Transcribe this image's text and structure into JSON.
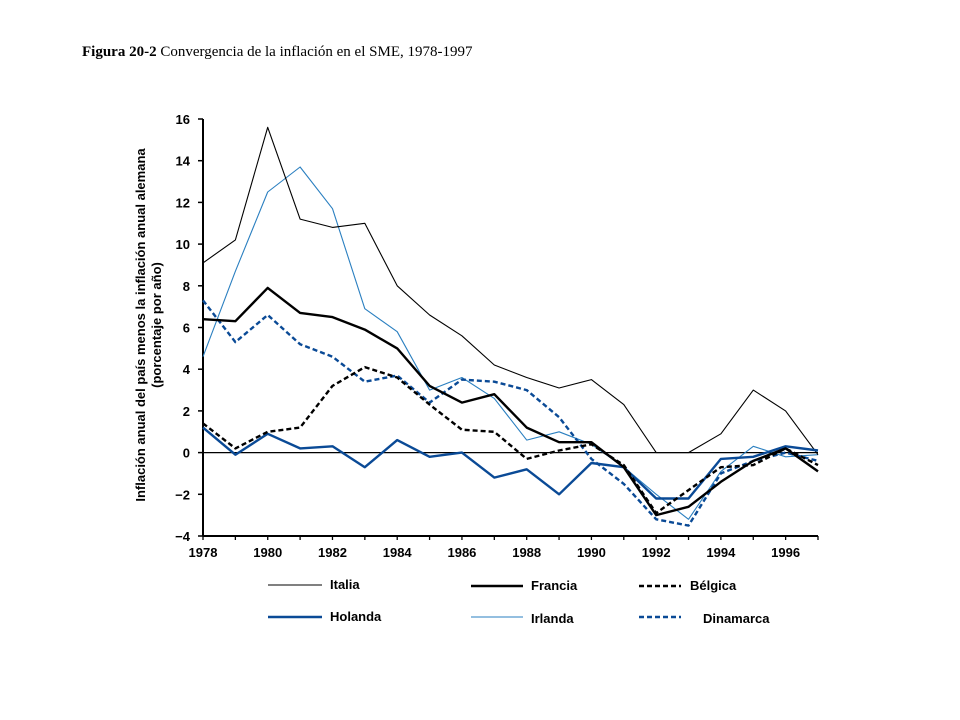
{
  "caption": {
    "figure_number": "Figura 20-2",
    "text": "Convergencia de la inflación en el SME, 1978-1997"
  },
  "chart_data": {
    "type": "line",
    "title": "Convergencia de la inflación en el SME, 1978-1997",
    "ylabel_line1": "Inflación anual del país menos la inflación anual alemana",
    "ylabel_line2": "(porcentaje por año)",
    "xlabel": "",
    "xlim": [
      1978,
      1997
    ],
    "ylim": [
      -4,
      16
    ],
    "x_ticks": [
      "1978",
      "1980",
      "1982",
      "1984",
      "1986",
      "1988",
      "1990",
      "1992",
      "1994",
      "1996"
    ],
    "y_ticks": [
      "16",
      "14",
      "12",
      "10",
      "8",
      "6",
      "4",
      "2",
      "0",
      "−2",
      "−4"
    ],
    "zero_line": true,
    "grid": false,
    "legend_position": "bottom",
    "x": [
      1978,
      1979,
      1980,
      1981,
      1982,
      1983,
      1984,
      1985,
      1986,
      1987,
      1988,
      1989,
      1990,
      1991,
      1992,
      1993,
      1994,
      1995,
      1996,
      1997
    ],
    "series": [
      {
        "name": "Italia",
        "color": "#000000",
        "style": "thin-solid",
        "values": [
          9.1,
          10.2,
          15.6,
          11.2,
          10.8,
          11.0,
          8.0,
          6.6,
          5.6,
          4.2,
          3.6,
          3.1,
          3.5,
          2.3,
          0.0,
          0.0,
          0.9,
          3.0,
          2.0,
          -0.1
        ]
      },
      {
        "name": "Francia",
        "color": "#000000",
        "style": "thick-solid",
        "values": [
          6.4,
          6.3,
          7.9,
          6.7,
          6.5,
          5.9,
          5.0,
          3.2,
          2.4,
          2.8,
          1.2,
          0.5,
          0.5,
          -0.7,
          -3.0,
          -2.6,
          -1.4,
          -0.4,
          0.2,
          -0.9
        ]
      },
      {
        "name": "Bélgica",
        "color": "#000000",
        "style": "thick-dashed",
        "values": [
          1.4,
          0.2,
          1.0,
          1.2,
          3.2,
          4.1,
          3.6,
          2.3,
          1.1,
          1.0,
          -0.3,
          0.1,
          0.4,
          -0.6,
          -2.9,
          -1.8,
          -0.7,
          -0.6,
          0.2,
          -0.6
        ]
      },
      {
        "name": "Holanda",
        "color": "#0a4a96",
        "style": "thick-solid",
        "values": [
          1.2,
          -0.1,
          0.9,
          0.2,
          0.3,
          -0.7,
          0.6,
          -0.2,
          0.0,
          -1.2,
          -0.8,
          -2.0,
          -0.5,
          -0.7,
          -2.2,
          -2.2,
          -0.3,
          -0.2,
          0.3,
          0.1
        ]
      },
      {
        "name": "Irlanda",
        "color": "#2a7fc0",
        "style": "thin-solid",
        "values": [
          4.6,
          8.7,
          12.5,
          13.7,
          11.7,
          6.9,
          5.8,
          3.0,
          3.6,
          2.6,
          0.6,
          1.0,
          0.4,
          -0.7,
          -2.0,
          -3.2,
          -0.9,
          0.3,
          -0.2,
          -0.1
        ]
      },
      {
        "name": "Dinamarca",
        "color": "#0a4a96",
        "style": "thick-dashed",
        "values": [
          7.3,
          5.3,
          6.6,
          5.2,
          4.6,
          3.4,
          3.7,
          2.4,
          3.5,
          3.4,
          3.0,
          1.7,
          -0.3,
          -1.5,
          -3.2,
          -3.5,
          -1.0,
          -0.4,
          0.0,
          -0.4
        ]
      }
    ]
  }
}
